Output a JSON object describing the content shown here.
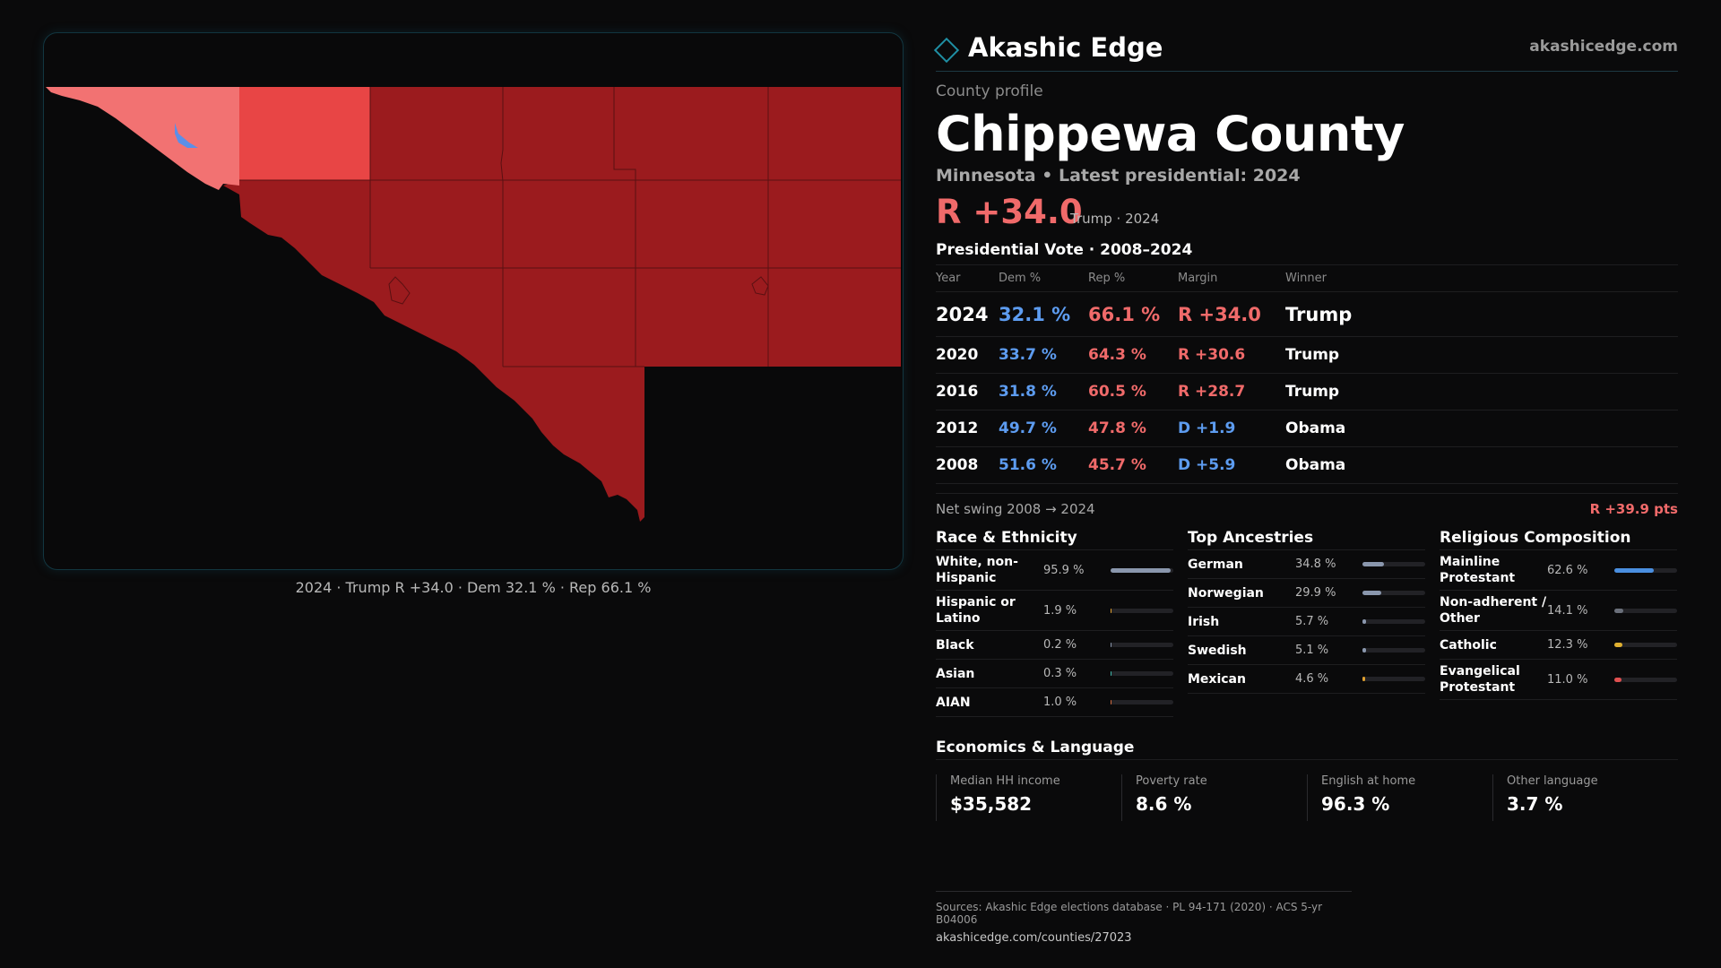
{
  "brand": {
    "name": "Akashic Edge",
    "url": "akashicedge.com"
  },
  "profile_label": "County profile",
  "county_name": "Chippewa County",
  "subtitle": "Minnesota • Latest presidential: 2024",
  "headline": {
    "margin": "R +34.0",
    "note": "Trump · 2024"
  },
  "vote_section": {
    "title": "Presidential Vote · 2008–2024",
    "headers": {
      "year": "Year",
      "dem": "Dem %",
      "rep": "Rep %",
      "margin": "Margin",
      "winner": "Winner"
    },
    "rows": [
      {
        "year": "2024",
        "dem": "32.1 %",
        "rep": "66.1 %",
        "margin": "R +34.0",
        "party": "rep",
        "winner": "Trump"
      },
      {
        "year": "2020",
        "dem": "33.7 %",
        "rep": "64.3 %",
        "margin": "R +30.6",
        "party": "rep",
        "winner": "Trump"
      },
      {
        "year": "2016",
        "dem": "31.8 %",
        "rep": "60.5 %",
        "margin": "R +28.7",
        "party": "rep",
        "winner": "Trump"
      },
      {
        "year": "2012",
        "dem": "49.7 %",
        "rep": "47.8 %",
        "margin": "D +1.9",
        "party": "dem",
        "winner": "Obama"
      },
      {
        "year": "2008",
        "dem": "51.6 %",
        "rep": "45.7 %",
        "margin": "D +5.9",
        "party": "dem",
        "winner": "Obama"
      }
    ],
    "swing_label": "Net swing 2008 → 2024",
    "swing_value": "R +39.9 pts"
  },
  "race": {
    "title": "Race & Ethnicity",
    "items": [
      {
        "label": "White, non-Hispanic",
        "value": "95.9 %",
        "pct": 95.9,
        "color": "#8a97ad"
      },
      {
        "label": "Hispanic or Latino",
        "value": "1.9 %",
        "pct": 1.9,
        "color": "#e0a030"
      },
      {
        "label": "Black",
        "value": "0.2 %",
        "pct": 0.2,
        "color": "#8a97ad"
      },
      {
        "label": "Asian",
        "value": "0.3 %",
        "pct": 0.3,
        "color": "#3fb6a8"
      },
      {
        "label": "AIAN",
        "value": "1.0 %",
        "pct": 1.0,
        "color": "#d06a40"
      }
    ]
  },
  "ancestry": {
    "title": "Top Ancestries",
    "items": [
      {
        "label": "German",
        "value": "34.8 %",
        "pct": 34.8,
        "color": "#8a97ad"
      },
      {
        "label": "Norwegian",
        "value": "29.9 %",
        "pct": 29.9,
        "color": "#8a97ad"
      },
      {
        "label": "Irish",
        "value": "5.7 %",
        "pct": 5.7,
        "color": "#8a97ad"
      },
      {
        "label": "Swedish",
        "value": "5.1 %",
        "pct": 5.1,
        "color": "#8a97ad"
      },
      {
        "label": "Mexican",
        "value": "4.6 %",
        "pct": 4.6,
        "color": "#e0a030"
      }
    ]
  },
  "religion": {
    "title": "Religious Composition",
    "items": [
      {
        "label": "Mainline Protestant",
        "value": "62.6 %",
        "pct": 62.6,
        "color": "#4a8fe0"
      },
      {
        "label": "Non-adherent / Other",
        "value": "14.1 %",
        "pct": 14.1,
        "color": "#6a6f7a"
      },
      {
        "label": "Catholic",
        "value": "12.3 %",
        "pct": 12.3,
        "color": "#e0b030"
      },
      {
        "label": "Evangelical Protestant",
        "value": "11.0 %",
        "pct": 11.0,
        "color": "#e05050"
      }
    ]
  },
  "economics": {
    "title": "Economics & Language",
    "items": [
      {
        "label": "Median HH income",
        "value": "$35,582"
      },
      {
        "label": "Poverty rate",
        "value": "8.6 %"
      },
      {
        "label": "English at home",
        "value": "96.3 %"
      },
      {
        "label": "Other language",
        "value": "3.7 %"
      }
    ]
  },
  "map": {
    "caption": "2024 · Trump R +34.0 · Dem 32.1 % · Rep 66.1 %",
    "colors": {
      "dark_rep": "#9b1b1e",
      "mid_rep": "#e84545",
      "light_rep": "#f27272",
      "dem": "#5b8fe8",
      "border": "#5a1012"
    }
  },
  "sources": {
    "line1": "Sources: Akashic Edge elections database · PL 94-171 (2020) · ACS 5-yr B04006",
    "line2": "akashicedge.com/counties/27023"
  }
}
